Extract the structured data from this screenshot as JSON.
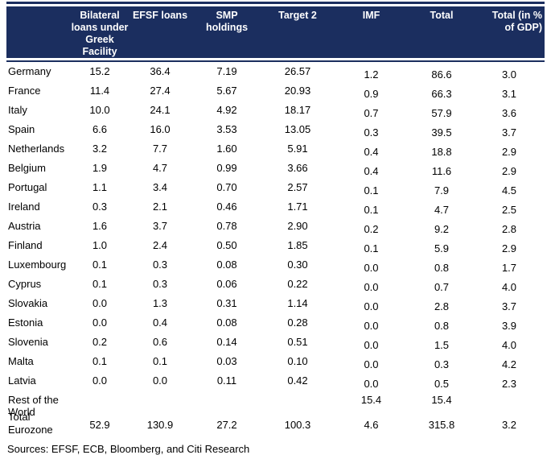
{
  "colors": {
    "header_background": "#1b2e5f",
    "header_text": "#ffffff",
    "body_text": "#000000"
  },
  "chart_data": {
    "type": "table",
    "columns": [
      "Bilateral\nloans under\nGreek\nFacility",
      "EFSF loans",
      "SMP\nholdings",
      "Target 2",
      "IMF",
      "Total",
      "Total (in %\nof GDP)"
    ],
    "rows": [
      {
        "label": "Germany",
        "group": "country",
        "values": [
          "15.2",
          "36.4",
          "7.19",
          "26.57",
          "1.2",
          "86.6",
          "3.0"
        ]
      },
      {
        "label": "France",
        "group": "country",
        "values": [
          "11.4",
          "27.4",
          "5.67",
          "20.93",
          "0.9",
          "66.3",
          "3.1"
        ]
      },
      {
        "label": "Italy",
        "group": "country",
        "values": [
          "10.0",
          "24.1",
          "4.92",
          "18.17",
          "0.7",
          "57.9",
          "3.6"
        ]
      },
      {
        "label": "Spain",
        "group": "country",
        "values": [
          "6.6",
          "16.0",
          "3.53",
          "13.05",
          "0.3",
          "39.5",
          "3.7"
        ]
      },
      {
        "label": "Netherlands",
        "group": "country",
        "values": [
          "3.2",
          "7.7",
          "1.60",
          "5.91",
          "0.4",
          "18.8",
          "2.9"
        ]
      },
      {
        "label": "Belgium",
        "group": "country",
        "values": [
          "1.9",
          "4.7",
          "0.99",
          "3.66",
          "0.4",
          "11.6",
          "2.9"
        ]
      },
      {
        "label": "Portugal",
        "group": "country",
        "values": [
          "1.1",
          "3.4",
          "0.70",
          "2.57",
          "0.1",
          "7.9",
          "4.5"
        ]
      },
      {
        "label": "Ireland",
        "group": "country",
        "values": [
          "0.3",
          "2.1",
          "0.46",
          "1.71",
          "0.1",
          "4.7",
          "2.5"
        ]
      },
      {
        "label": "Austria",
        "group": "country",
        "values": [
          "1.6",
          "3.7",
          "0.78",
          "2.90",
          "0.2",
          "9.2",
          "2.8"
        ]
      },
      {
        "label": "Finland",
        "group": "country",
        "values": [
          "1.0",
          "2.4",
          "0.50",
          "1.85",
          "0.1",
          "5.9",
          "2.9"
        ]
      },
      {
        "label": "Luxembourg",
        "group": "country",
        "values": [
          "0.1",
          "0.3",
          "0.08",
          "0.30",
          "0.0",
          "0.8",
          "1.7"
        ]
      },
      {
        "label": "Cyprus",
        "group": "country",
        "values": [
          "0.1",
          "0.3",
          "0.06",
          "0.22",
          "0.0",
          "0.7",
          "4.0"
        ]
      },
      {
        "label": "Slovakia",
        "group": "country",
        "values": [
          "0.0",
          "1.3",
          "0.31",
          "1.14",
          "0.0",
          "2.8",
          "3.7"
        ]
      },
      {
        "label": "Estonia",
        "group": "country",
        "values": [
          "0.0",
          "0.4",
          "0.08",
          "0.28",
          "0.0",
          "0.8",
          "3.9"
        ]
      },
      {
        "label": "Slovenia",
        "group": "country",
        "values": [
          "0.2",
          "0.6",
          "0.14",
          "0.51",
          "0.0",
          "1.5",
          "4.0"
        ]
      },
      {
        "label": "Malta",
        "group": "country",
        "values": [
          "0.1",
          "0.1",
          "0.03",
          "0.10",
          "0.0",
          "0.3",
          "4.2"
        ]
      },
      {
        "label": "Latvia",
        "group": "country",
        "values": [
          "0.0",
          "0.0",
          "0.11",
          "0.42",
          "0.0",
          "0.5",
          "2.3"
        ]
      },
      {
        "label": "Rest of the World",
        "group": "aggregate",
        "values": [
          "",
          "",
          "",
          "",
          "15.4",
          "15.4",
          ""
        ]
      },
      {
        "label": "Total Eurozone",
        "group": "aggregate",
        "tall": true,
        "values": [
          "52.9",
          "130.9",
          "27.2",
          "100.3",
          "4.6",
          "315.8",
          "3.2"
        ]
      }
    ],
    "source": "Sources: EFSF, ECB, Bloomberg, and Citi Research"
  }
}
